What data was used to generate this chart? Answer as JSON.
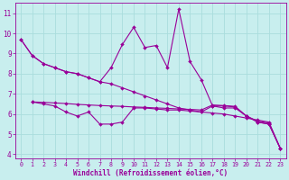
{
  "background_color": "#c8eeee",
  "grid_color": "#aadddd",
  "line_color": "#990099",
  "xlabel": "Windchill (Refroidissement éolien,°C)",
  "xlim": [
    -0.5,
    23.5
  ],
  "ylim": [
    3.8,
    11.5
  ],
  "yticks": [
    4,
    5,
    6,
    7,
    8,
    9,
    10,
    11
  ],
  "xticks": [
    0,
    1,
    2,
    3,
    4,
    5,
    6,
    7,
    8,
    9,
    10,
    11,
    12,
    13,
    14,
    15,
    16,
    17,
    18,
    19,
    20,
    21,
    22,
    23
  ],
  "s1_x": [
    0,
    1,
    2,
    3,
    4,
    5,
    6,
    7,
    8,
    9,
    10,
    11,
    12,
    13,
    14,
    15,
    16,
    17,
    18,
    19,
    20,
    21,
    22,
    23
  ],
  "s1_y": [
    9.7,
    8.9,
    8.5,
    8.3,
    8.1,
    8.0,
    7.8,
    7.6,
    8.3,
    9.45,
    10.3,
    9.3,
    9.4,
    8.3,
    11.2,
    8.6,
    7.7,
    6.4,
    6.3,
    6.3,
    5.9,
    5.6,
    5.5,
    4.3
  ],
  "s2_x": [
    0,
    1,
    2,
    3,
    4,
    5,
    6,
    7,
    8,
    9,
    10,
    11,
    12,
    13,
    14,
    15,
    16,
    17,
    18,
    19,
    20,
    21,
    22,
    23
  ],
  "s2_y": [
    9.7,
    8.9,
    8.5,
    8.3,
    8.1,
    8.0,
    7.8,
    7.6,
    7.5,
    7.3,
    7.1,
    6.9,
    6.7,
    6.5,
    6.3,
    6.2,
    6.1,
    6.05,
    6.0,
    5.9,
    5.8,
    5.7,
    5.6,
    4.3
  ],
  "s3_x": [
    1,
    2,
    3,
    4,
    5,
    6,
    7,
    8,
    9,
    10,
    11,
    12,
    13,
    14,
    15,
    16,
    17,
    18,
    19,
    20,
    21,
    22,
    23
  ],
  "s3_y": [
    6.6,
    6.5,
    6.4,
    6.1,
    5.9,
    6.1,
    5.5,
    5.5,
    5.6,
    6.3,
    6.3,
    6.25,
    6.2,
    6.2,
    6.15,
    6.1,
    6.4,
    6.4,
    6.35,
    5.9,
    5.6,
    5.5,
    4.3
  ],
  "s4_x": [
    1,
    2,
    3,
    4,
    5,
    6,
    7,
    8,
    9,
    10,
    11,
    12,
    13,
    14,
    15,
    16,
    17,
    18,
    19,
    20,
    21,
    22,
    23
  ],
  "s4_y": [
    6.6,
    6.58,
    6.55,
    6.52,
    6.48,
    6.45,
    6.42,
    6.4,
    6.38,
    6.35,
    6.33,
    6.3,
    6.28,
    6.25,
    6.23,
    6.2,
    6.45,
    6.42,
    6.38,
    5.9,
    5.65,
    5.55,
    4.3
  ]
}
